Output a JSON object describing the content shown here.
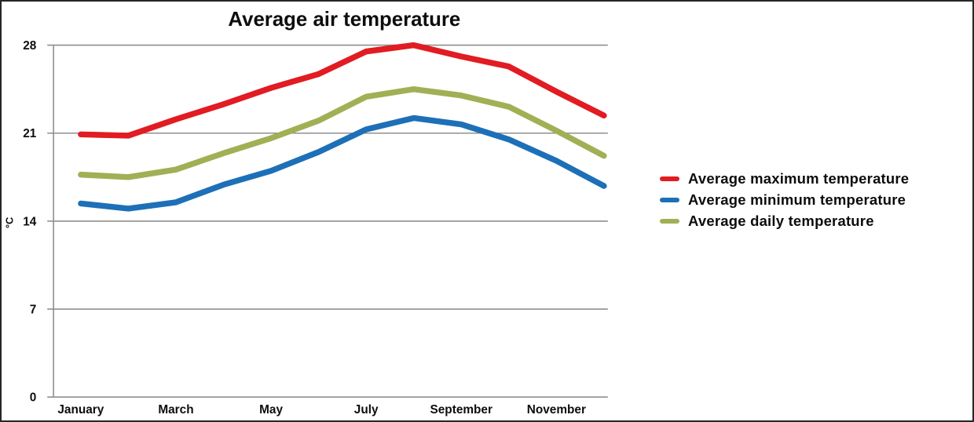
{
  "title": "Average air temperature",
  "y_axis": {
    "unit_label": "°C",
    "ticks": [
      0,
      7,
      14,
      21,
      28
    ]
  },
  "x_axis": {
    "visible_labels": [
      "January",
      "March",
      "May",
      "July",
      "September",
      "November"
    ]
  },
  "legend": {
    "items": [
      {
        "label": "Average maximum temperature",
        "color": "#e11c22"
      },
      {
        "label": "Average minimum temperature",
        "color": "#1d70b7"
      },
      {
        "label": "Average daily temperature",
        "color": "#a0b054"
      }
    ]
  },
  "chart_data": {
    "type": "line",
    "title": "Average air temperature",
    "xlabel": "",
    "ylabel": "°C",
    "ylim": [
      0,
      28
    ],
    "grid": "horizontal",
    "legend_position": "right",
    "x": [
      "January",
      "February",
      "March",
      "April",
      "May",
      "June",
      "July",
      "August",
      "September",
      "October",
      "November",
      "December"
    ],
    "x_tick_labels_shown": [
      "January",
      "March",
      "May",
      "July",
      "September",
      "November"
    ],
    "series": [
      {
        "name": "Average maximum temperature",
        "color": "#e11c22",
        "values": [
          20.9,
          20.8,
          22.1,
          23.3,
          24.6,
          25.7,
          27.5,
          28.0,
          27.1,
          26.3,
          24.3,
          22.4
        ]
      },
      {
        "name": "Average minimum temperature",
        "color": "#1d70b7",
        "values": [
          15.4,
          15.0,
          15.5,
          16.9,
          18.0,
          19.5,
          21.3,
          22.2,
          21.7,
          20.5,
          18.8,
          16.8
        ]
      },
      {
        "name": "Average daily temperature",
        "color": "#a0b054",
        "values": [
          17.7,
          17.5,
          18.1,
          19.4,
          20.6,
          22.0,
          23.9,
          24.5,
          24.0,
          23.1,
          21.2,
          19.2
        ]
      }
    ],
    "colors": {
      "grid": "#8f8f8f",
      "text": "#0d0d0d",
      "background": "#ffffff"
    }
  }
}
